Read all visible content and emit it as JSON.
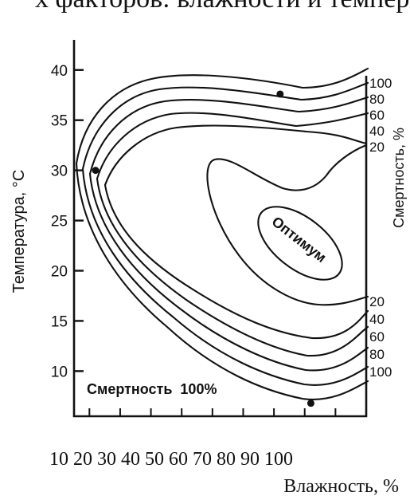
{
  "top_text": "х факторов: влажности и темпер",
  "bottom_axis_labels": "10 20 30  40  50  60  70 80 90 100",
  "x_axis_title": "Влажность, %",
  "chart_data": {
    "type": "contour",
    "title": "",
    "xlabel": "Влажность, %",
    "ylabel": "Температура, °C",
    "right_label": "Смертность, %",
    "y_ticks": [
      10,
      15,
      20,
      25,
      30,
      35,
      40
    ],
    "ylim": [
      5.5,
      43
    ],
    "xlim": [
      5,
      100
    ],
    "x_minor_ticks": [
      10,
      20,
      30,
      40,
      50,
      60,
      70,
      80,
      90,
      100
    ],
    "grid": false,
    "legend": "none",
    "series": [
      {
        "label": "100",
        "kind": "outer"
      },
      {
        "label": "80",
        "kind": "outer"
      },
      {
        "label": "60",
        "kind": "outer"
      },
      {
        "label": "40",
        "kind": "outer"
      },
      {
        "label": "20",
        "kind": "outer"
      }
    ],
    "upper_labels": [
      "100",
      "80",
      "60",
      "40",
      "20"
    ],
    "lower_labels": [
      "20",
      "40",
      "60",
      "80",
      "100"
    ],
    "annotations": {
      "optimum": "Оптимум",
      "mortality_region": "Смертность  100%"
    },
    "dots": [
      {
        "x": 72,
        "y": 37.6
      },
      {
        "x": 12,
        "y": 30
      },
      {
        "x": 82,
        "y": 6.8
      }
    ]
  }
}
